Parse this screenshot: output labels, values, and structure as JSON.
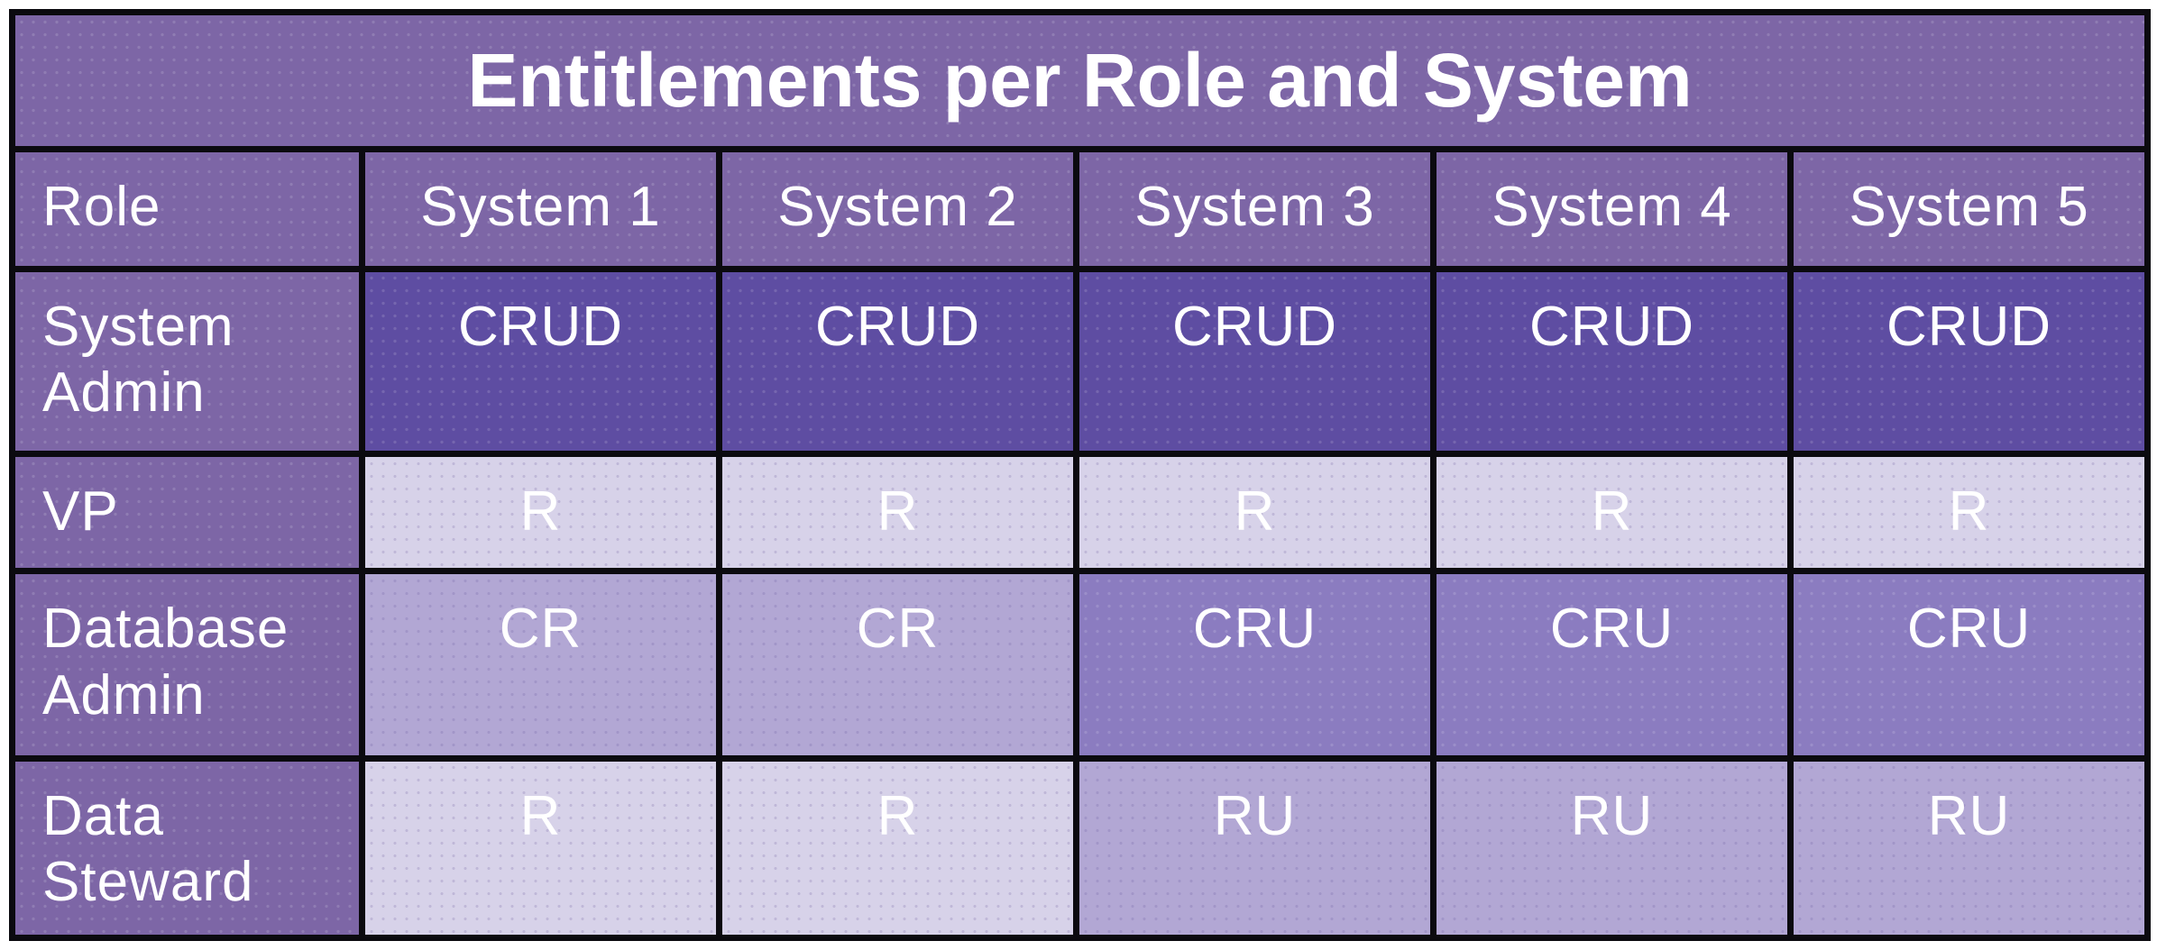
{
  "title": "Entitlements per Role and System",
  "table": {
    "columns": [
      "Role",
      "System 1",
      "System 2",
      "System 3",
      "System 4",
      "System 5"
    ],
    "rows": [
      {
        "role": "System Admin",
        "cells": [
          {
            "value": "CRUD",
            "level": 4
          },
          {
            "value": "CRUD",
            "level": 4
          },
          {
            "value": "CRUD",
            "level": 4
          },
          {
            "value": "CRUD",
            "level": 4
          },
          {
            "value": "CRUD",
            "level": 4
          }
        ]
      },
      {
        "role": "VP",
        "cells": [
          {
            "value": "R",
            "level": 1
          },
          {
            "value": "R",
            "level": 1
          },
          {
            "value": "R",
            "level": 1
          },
          {
            "value": "R",
            "level": 1
          },
          {
            "value": "R",
            "level": 1
          }
        ]
      },
      {
        "role": "Database Admin",
        "cells": [
          {
            "value": "CR",
            "level": 2
          },
          {
            "value": "CR",
            "level": 2
          },
          {
            "value": "CRU",
            "level": 3
          },
          {
            "value": "CRU",
            "level": 3
          },
          {
            "value": "CRU",
            "level": 3
          }
        ]
      },
      {
        "role": "Data Steward",
        "cells": [
          {
            "value": "R",
            "level": 1
          },
          {
            "value": "R",
            "level": 1
          },
          {
            "value": "RU",
            "level": 2
          },
          {
            "value": "RU",
            "level": 2
          },
          {
            "value": "RU",
            "level": 2
          }
        ]
      }
    ]
  },
  "colors": {
    "header_purple": "#7d66a6",
    "level_4_crud": "#5e4da2",
    "level_3_cru": "#8b7cc0",
    "level_2_two_perms": "#b2a7d4",
    "level_1_read_only": "#d7d2e9",
    "border_black": "#0b0a0f",
    "text_white": "#ffffff",
    "page_background": "#ffffff"
  },
  "chart_data": {
    "type": "table",
    "title": "Entitlements per Role and System",
    "columns": [
      "Role",
      "System 1",
      "System 2",
      "System 3",
      "System 4",
      "System 5"
    ],
    "rows": [
      [
        "System Admin",
        "CRUD",
        "CRUD",
        "CRUD",
        "CRUD",
        "CRUD"
      ],
      [
        "VP",
        "R",
        "R",
        "R",
        "R",
        "R"
      ],
      [
        "Database Admin",
        "CR",
        "CR",
        "CRU",
        "CRU",
        "CRU"
      ],
      [
        "Data Steward",
        "R",
        "R",
        "RU",
        "RU",
        "RU"
      ]
    ],
    "shading_levels": [
      [
        4,
        4,
        4,
        4,
        4
      ],
      [
        1,
        1,
        1,
        1,
        1
      ],
      [
        2,
        2,
        3,
        3,
        3
      ],
      [
        1,
        1,
        2,
        2,
        2
      ]
    ],
    "layout_hints": {
      "shading": "darker purple = more entitlement letters (CRUD=4 darkest, R=1 lightest)",
      "grid": "thick black borders between all cells",
      "role_column_and_headers": "medium purple, white text"
    }
  }
}
